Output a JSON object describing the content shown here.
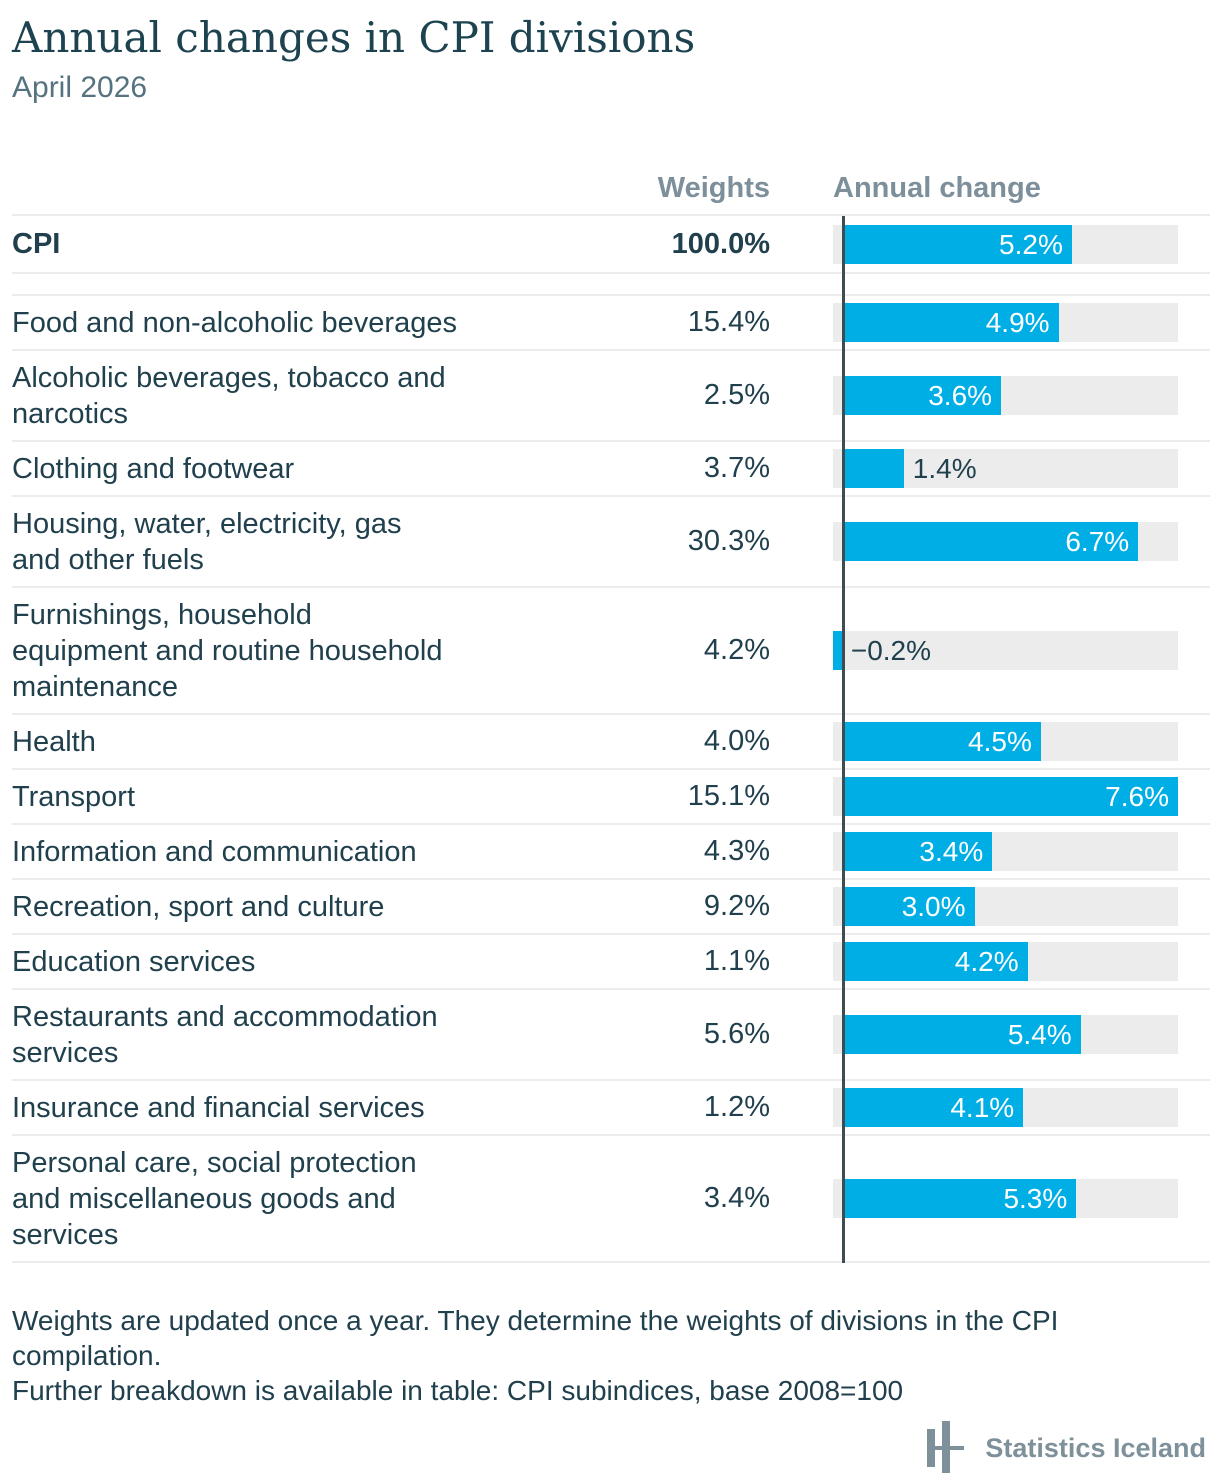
{
  "header": {
    "title": "Annual changes in CPI divisions",
    "subtitle": "April 2026"
  },
  "columns": {
    "weights": "Weights",
    "annual_change": "Annual change"
  },
  "rows": [
    {
      "label_lines": [
        "CPI"
      ],
      "weight": "100.0%",
      "change": "5.2%",
      "value": 5.2,
      "emphasis": true
    },
    {
      "label_lines": [
        "Food and non-alcoholic beverages"
      ],
      "weight": "15.4%",
      "change": "4.9%",
      "value": 4.9
    },
    {
      "label_lines": [
        "Alcoholic beverages, tobacco and",
        "narcotics"
      ],
      "weight": "2.5%",
      "change": "3.6%",
      "value": 3.6
    },
    {
      "label_lines": [
        "Clothing and footwear"
      ],
      "weight": "3.7%",
      "change": "1.4%",
      "value": 1.4
    },
    {
      "label_lines": [
        "Housing, water, electricity, gas",
        "and other fuels"
      ],
      "weight": "30.3%",
      "change": "6.7%",
      "value": 6.7
    },
    {
      "label_lines": [
        "Furnishings, household",
        "equipment and routine household",
        "maintenance"
      ],
      "weight": "4.2%",
      "change": "−0.2%",
      "value": -0.2
    },
    {
      "label_lines": [
        "Health"
      ],
      "weight": "4.0%",
      "change": "4.5%",
      "value": 4.5
    },
    {
      "label_lines": [
        "Transport"
      ],
      "weight": "15.1%",
      "change": "7.6%",
      "value": 7.6
    },
    {
      "label_lines": [
        "Information and communication"
      ],
      "weight": "4.3%",
      "change": "3.4%",
      "value": 3.4
    },
    {
      "label_lines": [
        "Recreation, sport and culture"
      ],
      "weight": "9.2%",
      "change": "3.0%",
      "value": 3.0
    },
    {
      "label_lines": [
        "Education services"
      ],
      "weight": "1.1%",
      "change": "4.2%",
      "value": 4.2
    },
    {
      "label_lines": [
        "Restaurants and accommodation",
        "services"
      ],
      "weight": "5.6%",
      "change": "5.4%",
      "value": 5.4
    },
    {
      "label_lines": [
        "Insurance and financial services"
      ],
      "weight": "1.2%",
      "change": "4.1%",
      "value": 4.1
    },
    {
      "label_lines": [
        "Personal care, social protection",
        "and miscellaneous goods and",
        "services"
      ],
      "weight": "3.4%",
      "change": "5.3%",
      "value": 5.3
    }
  ],
  "chart_data": {
    "type": "bar",
    "orientation": "horizontal",
    "title": "Annual changes in CPI divisions",
    "subtitle": "April 2026",
    "categories": [
      "CPI",
      "Food and non-alcoholic beverages",
      "Alcoholic beverages, tobacco and narcotics",
      "Clothing and footwear",
      "Housing, water, electricity, gas and other fuels",
      "Furnishings, household equipment and routine household maintenance",
      "Health",
      "Transport",
      "Information and communication",
      "Recreation, sport and culture",
      "Education services",
      "Restaurants and accommodation services",
      "Insurance and financial services",
      "Personal care, social protection and miscellaneous goods and services"
    ],
    "series": [
      {
        "name": "Weights",
        "values": [
          100.0,
          15.4,
          2.5,
          3.7,
          30.3,
          4.2,
          4.0,
          15.1,
          4.3,
          9.2,
          1.1,
          5.6,
          1.2,
          3.4
        ]
      },
      {
        "name": "Annual change",
        "values": [
          5.2,
          4.9,
          3.6,
          1.4,
          6.7,
          -0.2,
          4.5,
          7.6,
          3.4,
          3.0,
          4.2,
          5.4,
          4.1,
          5.3
        ]
      }
    ],
    "xlim": [
      -0.2,
      7.6
    ],
    "grid": false,
    "legend": "none",
    "bar_color": "#00AEE6",
    "track_color": "#ECECEC",
    "axis_color": "#3E4C54",
    "inside_label_color": "#FFFFFF",
    "outside_label_color": "#21404D"
  },
  "footer": {
    "lines": [
      "Weights are updated once a year. They determine the weights of divisions in the CPI compilation.",
      "Further breakdown is available in table: CPI subindices, base 2008=100"
    ]
  },
  "logo": {
    "icon": "statistics-iceland-mark",
    "text": "Statistics Iceland",
    "color": "#7E919B"
  }
}
